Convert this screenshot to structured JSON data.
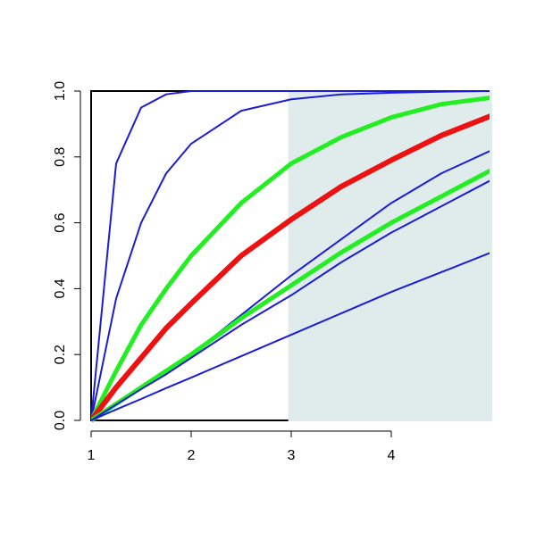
{
  "chart_data": {
    "type": "line",
    "x": [
      1,
      1.25,
      1.5,
      1.75,
      2,
      2.5,
      3,
      3.5,
      4,
      4.5,
      5
    ],
    "series": [
      {
        "color": "#1c1cd6",
        "width": 2,
        "values": [
          0,
          0.78,
          0.95,
          0.99,
          1.0,
          1,
          1,
          1,
          1,
          1,
          1
        ]
      },
      {
        "color": "#1c1cd6",
        "width": 2,
        "values": [
          0,
          0.37,
          0.6,
          0.75,
          0.84,
          0.94,
          0.975,
          0.99,
          0.995,
          0.998,
          1.0
        ]
      },
      {
        "color": "#22ee22",
        "width": 5,
        "values": [
          0,
          0.15,
          0.29,
          0.4,
          0.5,
          0.66,
          0.78,
          0.86,
          0.92,
          0.96,
          0.98
        ]
      },
      {
        "color": "#ee1111",
        "width": 6,
        "values": [
          0,
          0.1,
          0.19,
          0.28,
          0.355,
          0.5,
          0.61,
          0.71,
          0.79,
          0.865,
          0.925
        ]
      },
      {
        "color": "#1c1cd6",
        "width": 2,
        "values": [
          0,
          0.05,
          0.1,
          0.15,
          0.2,
          0.32,
          0.44,
          0.55,
          0.66,
          0.75,
          0.82
        ]
      },
      {
        "color": "#22ee22",
        "width": 5,
        "values": [
          0,
          0.05,
          0.1,
          0.15,
          0.2,
          0.31,
          0.41,
          0.51,
          0.6,
          0.68,
          0.76
        ]
      },
      {
        "color": "#1c1cd6",
        "width": 2,
        "values": [
          0,
          0.048,
          0.095,
          0.14,
          0.19,
          0.29,
          0.38,
          0.48,
          0.57,
          0.65,
          0.73
        ]
      },
      {
        "color": "#1c1cd6",
        "width": 2,
        "values": [
          0,
          0.033,
          0.065,
          0.098,
          0.13,
          0.195,
          0.26,
          0.325,
          0.39,
          0.45,
          0.51
        ]
      }
    ],
    "shade": {
      "x": [
        2.97,
        5
      ],
      "color": "#e0ecec"
    },
    "xlim": [
      1,
      5
    ],
    "ylim": [
      0,
      1
    ],
    "xticks": [
      1,
      2,
      3,
      4
    ],
    "yticks": [
      {
        "value": 0,
        "label": "0.0"
      },
      0.2,
      0.4,
      0.6,
      0.8,
      {
        "value": 1,
        "label": "1.0"
      }
    ]
  }
}
